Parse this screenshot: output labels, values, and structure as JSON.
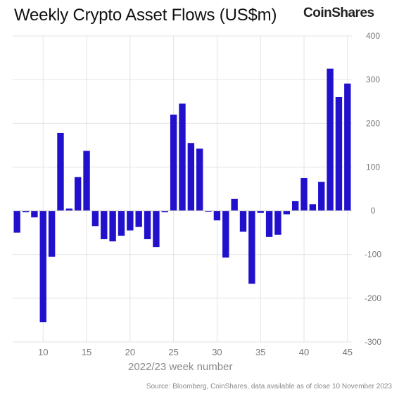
{
  "header": {
    "title": "Weekly Crypto Asset Flows (US$m)",
    "brand": "CoinShares"
  },
  "footer": {
    "source": "Source: Bloomberg, CoinShares, data available as of close 10 November 2023"
  },
  "chart_data": {
    "type": "bar",
    "title": "Weekly Crypto Asset Flows (US$m)",
    "xlabel": "2022/23 week number",
    "ylabel": "",
    "ylim": [
      -300,
      400
    ],
    "yticks": [
      -300,
      -200,
      -100,
      0,
      100,
      200,
      300,
      400
    ],
    "xticks": [
      10,
      15,
      20,
      25,
      30,
      35,
      40,
      45
    ],
    "xlim": [
      6.5,
      45.5
    ],
    "grid": true,
    "y_axis_position": "right",
    "bar_color": "#2211cc",
    "x": [
      7,
      8,
      9,
      10,
      11,
      12,
      13,
      14,
      15,
      16,
      17,
      18,
      19,
      20,
      21,
      22,
      23,
      24,
      25,
      26,
      27,
      28,
      29,
      30,
      31,
      32,
      33,
      34,
      35,
      36,
      37,
      38,
      39,
      40,
      41,
      42,
      43,
      44,
      45
    ],
    "values": [
      -50,
      -3,
      -15,
      -255,
      -105,
      178,
      5,
      77,
      137,
      -35,
      -65,
      -70,
      -57,
      -45,
      -37,
      -65,
      -83,
      -3,
      220,
      245,
      155,
      142,
      -2,
      -22,
      -107,
      27,
      -48,
      -167,
      -5,
      -60,
      -55,
      -8,
      22,
      75,
      15,
      66,
      325,
      260,
      291
    ]
  }
}
